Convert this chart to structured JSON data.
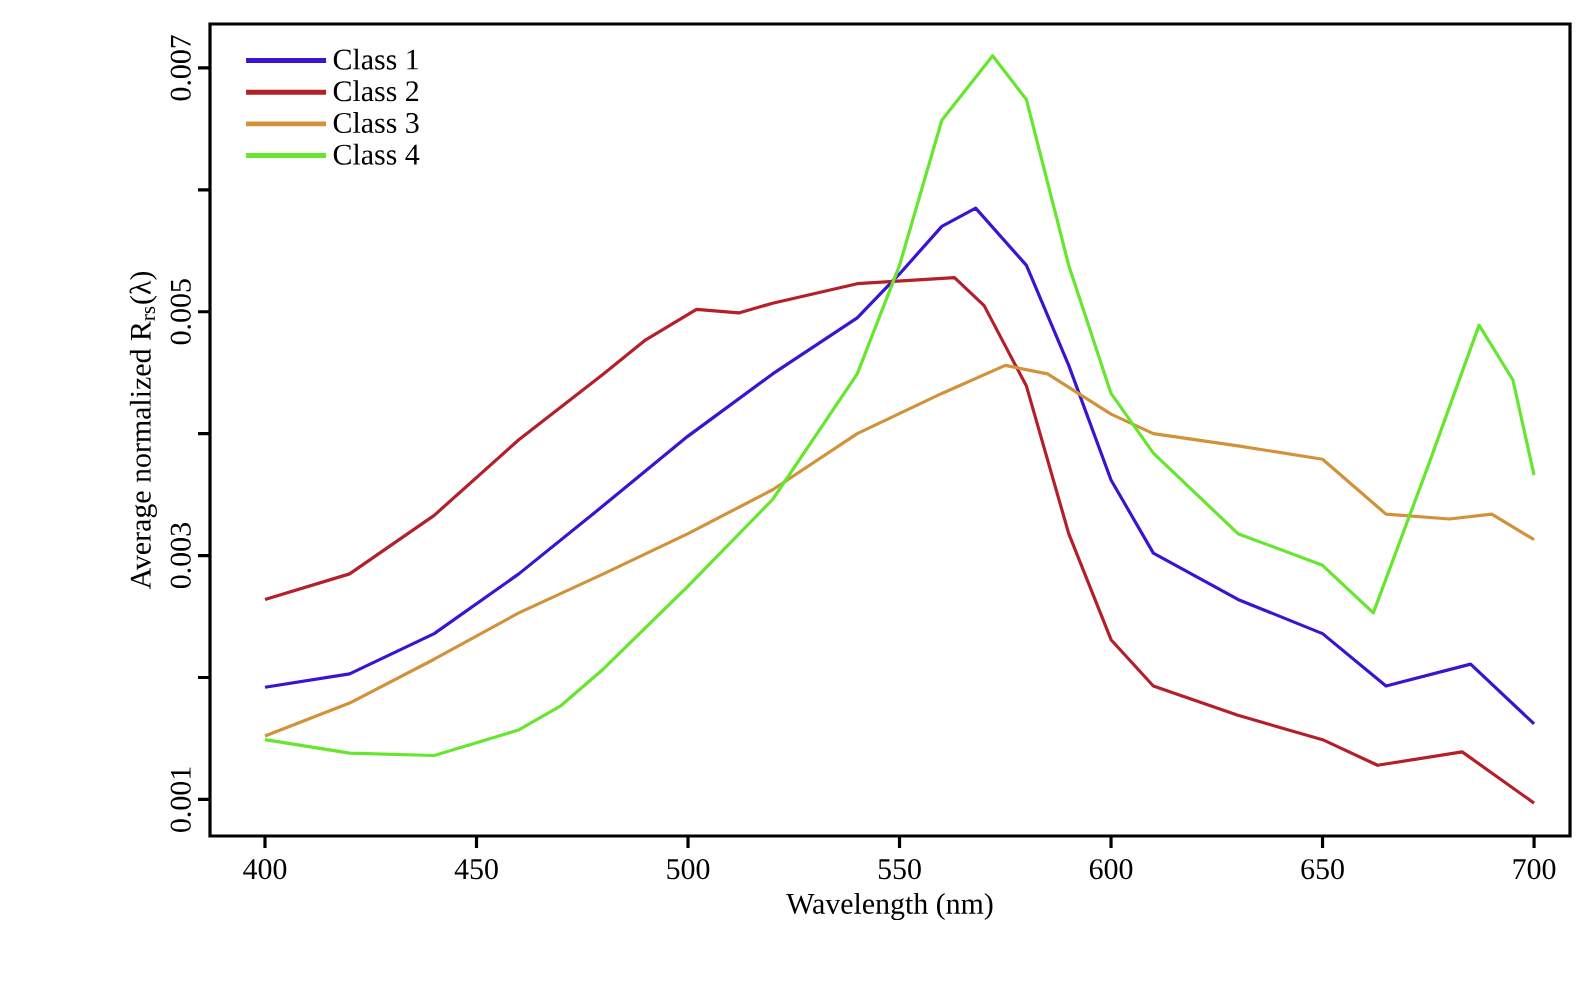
{
  "chart_data": {
    "type": "line",
    "xlabel": "Wavelength (nm)",
    "ylabel": "Average normalized R$_{rs}$(λ)",
    "xlim": [
      387,
      708.5
    ],
    "ylim": [
      0.0007,
      0.00736
    ],
    "xticks": [
      400,
      450,
      500,
      550,
      600,
      650,
      700
    ],
    "yticks": [
      0.001,
      {
        "value": 0.002,
        "label": null
      },
      0.003,
      {
        "value": 0.004,
        "label": null
      },
      0.005,
      {
        "value": 0.006,
        "label": null
      },
      0.007
    ],
    "grid": false,
    "legend": "top left",
    "marker": "none",
    "line_style": "solid",
    "series": [
      {
        "name": "Class 1",
        "color": "#3a14d0",
        "x": [
          400,
          420,
          440,
          460,
          480,
          500,
          520,
          540,
          550,
          560,
          568,
          580,
          590,
          600,
          610,
          630,
          650,
          665,
          685,
          700
        ],
        "values": [
          0.00192,
          0.00203,
          0.00236,
          0.00285,
          0.00341,
          0.00398,
          0.00449,
          0.00495,
          0.00531,
          0.0057,
          0.00585,
          0.00538,
          0.00456,
          0.00362,
          0.00302,
          0.00264,
          0.00236,
          0.00193,
          0.00211,
          0.00162
        ]
      },
      {
        "name": "Class 2",
        "color": "#b3202a",
        "x": [
          400,
          420,
          440,
          460,
          480,
          490,
          502,
          512,
          520,
          540,
          563,
          570,
          580,
          590,
          600,
          610,
          630,
          650,
          663,
          683,
          700
        ],
        "values": [
          0.00264,
          0.00285,
          0.00333,
          0.00395,
          0.00449,
          0.00477,
          0.00502,
          0.00499,
          0.00507,
          0.00523,
          0.00528,
          0.00505,
          0.00439,
          0.00318,
          0.00231,
          0.00193,
          0.00169,
          0.00149,
          0.00128,
          0.00139,
          0.00097
        ]
      },
      {
        "name": "Class 3",
        "color": "#d1923a",
        "x": [
          400,
          420,
          440,
          460,
          480,
          500,
          520,
          540,
          560,
          575,
          585,
          600,
          610,
          630,
          650,
          665,
          680,
          690,
          700
        ],
        "values": [
          0.00152,
          0.00179,
          0.00215,
          0.00253,
          0.00285,
          0.00318,
          0.00354,
          0.004,
          0.00433,
          0.00456,
          0.00449,
          0.00416,
          0.004,
          0.0039,
          0.00379,
          0.00334,
          0.0033,
          0.00334,
          0.00313
        ]
      },
      {
        "name": "Class 4",
        "color": "#66e62e",
        "x": [
          400,
          420,
          440,
          460,
          470,
          480,
          500,
          520,
          540,
          550,
          560,
          572,
          580,
          590,
          600,
          610,
          630,
          650,
          662,
          675,
          687,
          695,
          700
        ],
        "values": [
          0.00149,
          0.00138,
          0.00136,
          0.00157,
          0.00177,
          0.00207,
          0.00275,
          0.00346,
          0.00449,
          0.00538,
          0.00657,
          0.0071,
          0.00674,
          0.00538,
          0.00433,
          0.00384,
          0.00318,
          0.00292,
          0.00253,
          0.00374,
          0.00489,
          0.00444,
          0.00366
        ]
      }
    ]
  }
}
